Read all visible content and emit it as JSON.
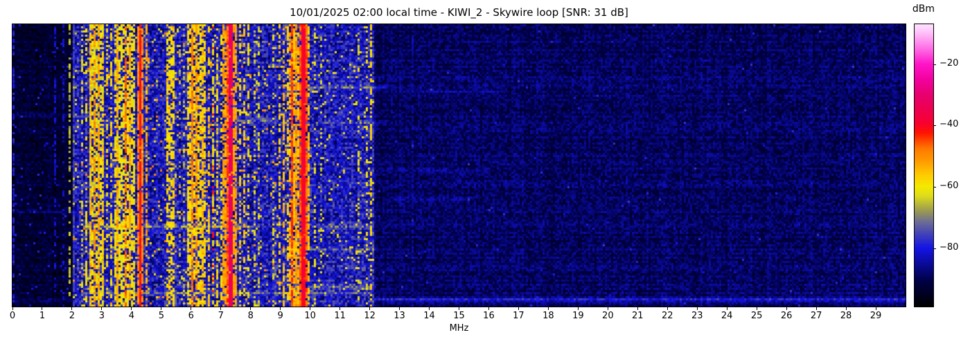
{
  "chart_data": {
    "type": "heatmap",
    "subtype": "radio-spectrum-waterfall",
    "title": "10/01/2025 02:00 local time - KIWI_2 - Skywire loop [SNR: 31 dB]",
    "timestamp_label": "10/01/2025 02:00 local time",
    "station": "KIWI_2",
    "antenna": "Skywire loop",
    "snr_label": "SNR: 31 dB",
    "xlabel": "MHz",
    "ylabel": "",
    "y_axis_note": "time (waterfall rows, unlabeled)",
    "x_range": [
      0,
      30
    ],
    "x_ticks": [
      0,
      1,
      2,
      3,
      4,
      5,
      6,
      7,
      8,
      9,
      10,
      11,
      12,
      13,
      14,
      15,
      16,
      17,
      18,
      19,
      20,
      21,
      22,
      23,
      24,
      25,
      26,
      27,
      28,
      29
    ],
    "grid": false,
    "colorbar": {
      "label": "dBm",
      "vmin": -99,
      "vmax": -7,
      "ticks": [
        {
          "value": -20,
          "label": "−20"
        },
        {
          "value": -40,
          "label": "−40"
        },
        {
          "value": -60,
          "label": "−60"
        },
        {
          "value": -80,
          "label": "−80"
        }
      ],
      "position": "right"
    },
    "colormap_stops": [
      [
        0.0,
        "#000000"
      ],
      [
        0.09,
        "#000046"
      ],
      [
        0.207,
        "#1414e6"
      ],
      [
        0.26,
        "#4646b4"
      ],
      [
        0.3,
        "#6e6e96"
      ],
      [
        0.33,
        "#90905f"
      ],
      [
        0.36,
        "#b4b43c"
      ],
      [
        0.39,
        "#dcdc1e"
      ],
      [
        0.424,
        "#f5ea00"
      ],
      [
        0.47,
        "#ffc800"
      ],
      [
        0.51,
        "#ffa000"
      ],
      [
        0.56,
        "#ff7800"
      ],
      [
        0.615,
        "#ff1400"
      ],
      [
        0.65,
        "#f80030"
      ],
      [
        0.7,
        "#ee0050"
      ],
      [
        0.75,
        "#e8006e"
      ],
      [
        0.8,
        "#f2009b"
      ],
      [
        0.859,
        "#ff14c8"
      ],
      [
        0.915,
        "#ff6ee6"
      ],
      [
        0.976,
        "#ffc8fa"
      ],
      [
        1.0,
        "#ffe1ff"
      ]
    ],
    "noise_seed": 1337,
    "cell_size": [
      3,
      3
    ],
    "background_regions": [
      {
        "f0": 0.0,
        "f1": 2.0,
        "base": -97,
        "amp": 8,
        "comment": "dark, below receive band"
      },
      {
        "f0": 2.0,
        "f1": 12.15,
        "base": -89,
        "amp": 16,
        "comment": "active HF band, blue noise floor"
      },
      {
        "f0": 12.15,
        "f1": 30.0,
        "base": -93,
        "amp": 8,
        "comment": "quiet navy noise above 12.15 MHz cutoff"
      }
    ],
    "signal_bands": [
      [
        0.0,
        0.08,
        -80,
        0.5
      ],
      [
        1.4,
        1.44,
        -82,
        0.45
      ],
      [
        1.68,
        1.72,
        -82,
        0.4
      ],
      [
        1.91,
        1.95,
        -65,
        0.55
      ],
      [
        2.03,
        2.09,
        -76,
        0.8
      ],
      [
        2.31,
        2.35,
        -63,
        0.4
      ],
      [
        2.46,
        2.52,
        -60,
        0.5
      ],
      [
        2.55,
        3.1,
        -62,
        0.55
      ],
      [
        2.58,
        2.63,
        -55,
        0.6
      ],
      [
        2.7,
        2.78,
        -50,
        0.65
      ],
      [
        2.86,
        2.94,
        -52,
        0.6
      ],
      [
        3.0,
        3.06,
        -56,
        0.55
      ],
      [
        3.16,
        3.21,
        -60,
        0.45
      ],
      [
        3.3,
        3.35,
        -58,
        0.5
      ],
      [
        3.45,
        4.1,
        -60,
        0.6
      ],
      [
        3.52,
        3.57,
        -52,
        0.65
      ],
      [
        3.6,
        3.66,
        -48,
        0.7
      ],
      [
        3.78,
        3.84,
        -47,
        0.72
      ],
      [
        3.9,
        3.98,
        -52,
        0.65
      ],
      [
        4.18,
        4.42,
        -50,
        0.8
      ],
      [
        4.24,
        4.36,
        -41,
        0.96
      ],
      [
        4.46,
        4.52,
        -53,
        0.6
      ],
      [
        4.58,
        4.64,
        -57,
        0.55
      ],
      [
        4.72,
        4.76,
        -62,
        0.45
      ],
      [
        4.86,
        4.9,
        -60,
        0.45
      ],
      [
        5.0,
        5.05,
        -58,
        0.5
      ],
      [
        5.18,
        5.48,
        -58,
        0.55
      ],
      [
        5.28,
        5.34,
        -52,
        0.6
      ],
      [
        5.6,
        5.64,
        -66,
        0.3
      ],
      [
        5.74,
        5.78,
        -64,
        0.3
      ],
      [
        5.85,
        6.5,
        -58,
        0.6
      ],
      [
        5.98,
        6.08,
        -48,
        0.75
      ],
      [
        6.16,
        6.22,
        -50,
        0.65
      ],
      [
        6.34,
        6.4,
        -54,
        0.55
      ],
      [
        6.55,
        6.6,
        -56,
        0.5
      ],
      [
        6.7,
        6.74,
        -60,
        0.5
      ],
      [
        6.7,
        6.74,
        -41,
        0.18
      ],
      [
        6.82,
        6.88,
        -58,
        0.5
      ],
      [
        6.98,
        7.04,
        -60,
        0.45
      ],
      [
        7.05,
        7.55,
        -52,
        0.75
      ],
      [
        7.16,
        7.26,
        -45,
        0.8
      ],
      [
        7.28,
        7.4,
        -33,
        0.97
      ],
      [
        7.62,
        7.67,
        -58,
        0.45
      ],
      [
        7.74,
        7.79,
        -56,
        0.5
      ],
      [
        7.88,
        7.93,
        -60,
        0.4
      ],
      [
        8.0,
        8.05,
        -58,
        0.45
      ],
      [
        8.1,
        8.14,
        -62,
        0.35
      ],
      [
        8.24,
        8.28,
        -63,
        0.3
      ],
      [
        8.44,
        8.48,
        -62,
        0.3
      ],
      [
        8.58,
        8.62,
        -64,
        0.3
      ],
      [
        8.74,
        8.78,
        -62,
        0.3
      ],
      [
        8.94,
        9.0,
        -58,
        0.45
      ],
      [
        9.06,
        9.12,
        -55,
        0.5
      ],
      [
        9.2,
        9.26,
        -57,
        0.45
      ],
      [
        9.3,
        9.62,
        -55,
        0.6
      ],
      [
        9.38,
        9.46,
        -44,
        0.85
      ],
      [
        9.5,
        9.56,
        -50,
        0.65
      ],
      [
        9.63,
        9.92,
        -46,
        0.85
      ],
      [
        9.68,
        9.86,
        -39,
        0.96
      ],
      [
        9.94,
        10.0,
        -55,
        0.6
      ],
      [
        10.12,
        10.16,
        -62,
        0.3
      ],
      [
        10.34,
        10.38,
        -63,
        0.3
      ],
      [
        10.6,
        10.64,
        -65,
        0.25
      ],
      [
        10.88,
        10.92,
        -64,
        0.25
      ],
      [
        11.08,
        11.12,
        -62,
        0.3
      ],
      [
        11.28,
        11.32,
        -65,
        0.25
      ],
      [
        11.5,
        11.54,
        -60,
        0.35
      ],
      [
        11.62,
        11.66,
        -62,
        0.3
      ],
      [
        11.7,
        11.76,
        -58,
        0.4
      ],
      [
        11.86,
        11.92,
        -60,
        0.35
      ],
      [
        12.0,
        12.1,
        -58,
        0.45
      ],
      [
        13.08,
        13.12,
        -88,
        0.5
      ],
      [
        13.42,
        13.47,
        -85,
        0.6
      ]
    ],
    "speckle": [
      [
        0.0,
        2.0,
        0.02,
        -80,
        6
      ],
      [
        2.0,
        10.0,
        0.04,
        -62,
        10
      ],
      [
        2.0,
        10.0,
        0.02,
        -50,
        6
      ],
      [
        10.0,
        12.15,
        0.04,
        -61,
        8
      ],
      [
        12.15,
        30.0,
        0.005,
        -80,
        8
      ]
    ],
    "row_streaks": [
      [
        0.069,
        7.7,
        8.5,
        6
      ],
      [
        0.225,
        9.8,
        12.6,
        8
      ],
      [
        0.235,
        13.0,
        16.5,
        4
      ],
      [
        0.32,
        0.0,
        2.0,
        4
      ],
      [
        0.34,
        7.35,
        8.9,
        7
      ],
      [
        0.345,
        10.2,
        12.6,
        6
      ],
      [
        0.52,
        12.2,
        16.0,
        4
      ],
      [
        0.62,
        12.8,
        15.5,
        4
      ],
      [
        0.665,
        0.0,
        2.0,
        4
      ],
      [
        0.715,
        2.4,
        8.3,
        9
      ],
      [
        0.717,
        3.3,
        4.15,
        13
      ],
      [
        0.72,
        10.3,
        11.8,
        7
      ],
      [
        0.8,
        10.0,
        12.2,
        5
      ],
      [
        0.936,
        9.9,
        12.25,
        9
      ],
      [
        0.958,
        2.3,
        12.1,
        8
      ],
      [
        0.978,
        12.15,
        30.0,
        10
      ],
      [
        0.978,
        0.0,
        2.0,
        4
      ]
    ]
  }
}
